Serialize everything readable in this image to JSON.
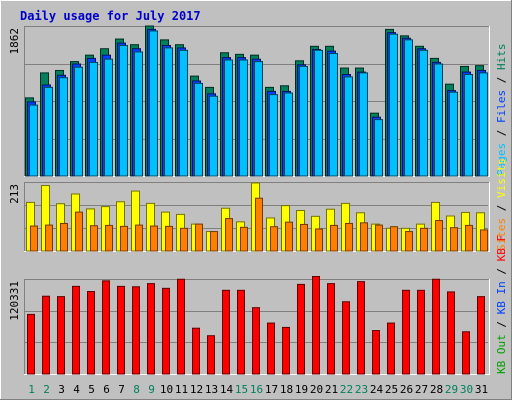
{
  "chart_data": {
    "title": "Daily usage for July 2017",
    "colors": {
      "background": "#c0c0c0",
      "title": "#0000cc",
      "hits": "#00805c",
      "files": "#0040ff",
      "pages": "#00c0ff",
      "visits": "#ffff00",
      "sites": "#ff8000",
      "kb_f": "#ff0000",
      "kb_in": "#0040ff",
      "kb_out": "#00a000",
      "day_weekday": "#000000",
      "day_weekend": "#00805c"
    },
    "days": [
      "1",
      "2",
      "3",
      "4",
      "5",
      "6",
      "7",
      "8",
      "9",
      "10",
      "11",
      "12",
      "13",
      "14",
      "15",
      "16",
      "17",
      "18",
      "19",
      "20",
      "21",
      "22",
      "23",
      "24",
      "25",
      "26",
      "27",
      "28",
      "29",
      "30",
      "31"
    ],
    "weekend_days": [
      "1",
      "2",
      "8",
      "9",
      "15",
      "16",
      "22",
      "23",
      "29",
      "30"
    ],
    "panels": [
      {
        "id": "pages-files-hits",
        "max_label": "1862",
        "ylim": [
          0,
          1862
        ],
        "legend": [
          {
            "label": "Hits",
            "color": "#00805c"
          },
          {
            "label": "Files",
            "color": "#0040ff"
          },
          {
            "label": "Pages",
            "color": "#00c0ff"
          }
        ],
        "legend_sep": " / ",
        "series": [
          {
            "name": "Hits",
            "values": [
              970,
              1280,
              1310,
              1420,
              1500,
              1580,
              1700,
              1630,
              1862,
              1690,
              1630,
              1240,
              1100,
              1530,
              1510,
              1500,
              1100,
              1120,
              1430,
              1610,
              1610,
              1340,
              1340,
              780,
              1820,
              1740,
              1610,
              1460,
              1140,
              1360,
              1370
            ]
          },
          {
            "name": "Files",
            "values": [
              920,
              1130,
              1250,
              1390,
              1460,
              1500,
              1650,
              1580,
              1820,
              1620,
              1590,
              1180,
              1020,
              1470,
              1470,
              1450,
              1050,
              1050,
              1380,
              1570,
              1550,
              1260,
              1290,
              730,
              1780,
              1710,
              1580,
              1410,
              1060,
              1290,
              1310
            ]
          },
          {
            "name": "Pages",
            "values": [
              880,
              1100,
              1220,
              1350,
              1410,
              1450,
              1620,
              1540,
              1800,
              1590,
              1560,
              1150,
              990,
              1440,
              1440,
              1420,
              1010,
              1030,
              1360,
              1560,
              1520,
              1230,
              1280,
              700,
              1760,
              1690,
              1560,
              1390,
              1040,
              1260,
              1280
            ]
          }
        ]
      },
      {
        "id": "visits-sites",
        "max_label": "213",
        "ylim": [
          0,
          213
        ],
        "legend": [
          {
            "label": "Visits",
            "color": "#ffff00"
          },
          {
            "label": "Sites",
            "color": "#ff8000"
          }
        ],
        "legend_sep": " / ",
        "series": [
          {
            "name": "Visits",
            "values": [
              150,
              202,
              146,
              176,
              130,
              137,
              152,
              185,
              147,
              120,
              113,
              83,
              60,
              132,
              90,
              210,
              102,
              140,
              125,
              107,
              129,
              147,
              118,
              83,
              70,
              70,
              83,
              150,
              108,
              119,
              118
            ]
          },
          {
            "name": "Sites",
            "values": [
              77,
              80,
              85,
              120,
              78,
              79,
              76,
              80,
              77,
              76,
              70,
              83,
              60,
              100,
              73,
              163,
              75,
              89,
              82,
              68,
              79,
              85,
              87,
              80,
              75,
              60,
              70,
              94,
              72,
              79,
              65
            ]
          }
        ]
      },
      {
        "id": "kb",
        "max_label": "120331",
        "ylim": [
          0,
          120331
        ],
        "legend": [
          {
            "label": "KB F",
            "color": "#ff0000"
          },
          {
            "label": "KB In",
            "color": "#0040ff"
          },
          {
            "label": "KB Out",
            "color": "#00a000"
          }
        ],
        "legend_sep": " / ",
        "series": [
          {
            "name": "KB F",
            "values": [
              75500,
              98500,
              98000,
              111000,
              104500,
              118000,
              111000,
              110500,
              114500,
              108500,
              120000,
              58000,
              48500,
              106000,
              106000,
              84000,
              64500,
              59000,
              113500,
              123500,
              114500,
              91500,
              117000,
              55000,
              64500,
              106000,
              106000,
              120000,
              104000,
              53500,
              98000
            ]
          }
        ]
      }
    ]
  }
}
